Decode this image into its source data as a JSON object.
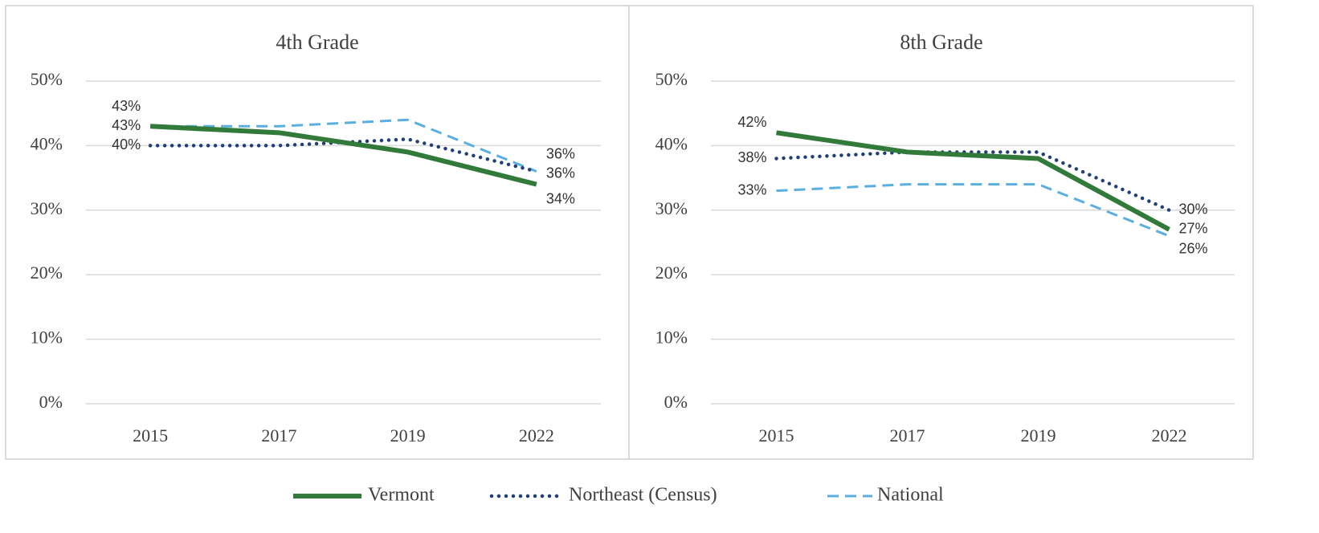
{
  "chart_data": [
    {
      "type": "line",
      "title": "4th Grade",
      "categories": [
        "2015",
        "2017",
        "2019",
        "2022"
      ],
      "ylim": [
        0,
        50
      ],
      "yticks": [
        {
          "value": 0,
          "label": "0%"
        },
        {
          "value": 10,
          "label": "10%"
        },
        {
          "value": 20,
          "label": "20%"
        },
        {
          "value": 30,
          "label": "30%"
        },
        {
          "value": 40,
          "label": "40%"
        },
        {
          "value": 50,
          "label": "50%"
        }
      ],
      "grid": true,
      "series": [
        {
          "name": "Vermont",
          "color": "#317a3a",
          "values": [
            43,
            42,
            39,
            34
          ],
          "value_labels": [
            "43%",
            null,
            null,
            "34%"
          ]
        },
        {
          "name": "Northeast (Census)",
          "color": "#1f3f77",
          "values": [
            40,
            40,
            41,
            36
          ],
          "value_labels": [
            "40%",
            null,
            null,
            "36%"
          ]
        },
        {
          "name": "National",
          "color": "#5aaee0",
          "values": [
            43,
            43,
            44,
            36
          ],
          "value_labels": [
            "43%",
            null,
            null,
            "36%"
          ]
        }
      ]
    },
    {
      "type": "line",
      "title": "8th Grade",
      "categories": [
        "2015",
        "2017",
        "2019",
        "2022"
      ],
      "ylim": [
        0,
        50
      ],
      "yticks": [
        {
          "value": 0,
          "label": "0%"
        },
        {
          "value": 10,
          "label": "10%"
        },
        {
          "value": 20,
          "label": "20%"
        },
        {
          "value": 30,
          "label": "30%"
        },
        {
          "value": 40,
          "label": "40%"
        },
        {
          "value": 50,
          "label": "50%"
        }
      ],
      "grid": true,
      "series": [
        {
          "name": "Vermont",
          "color": "#317a3a",
          "values": [
            42,
            39,
            38,
            27
          ],
          "value_labels": [
            "42%",
            null,
            null,
            "27%"
          ]
        },
        {
          "name": "Northeast (Census)",
          "color": "#1f3f77",
          "values": [
            38,
            39,
            39,
            30
          ],
          "value_labels": [
            "38%",
            null,
            null,
            "30%"
          ]
        },
        {
          "name": "National",
          "color": "#5aaee0",
          "values": [
            33,
            34,
            34,
            26
          ],
          "value_labels": [
            "33%",
            null,
            null,
            "26%"
          ]
        }
      ]
    }
  ]
}
